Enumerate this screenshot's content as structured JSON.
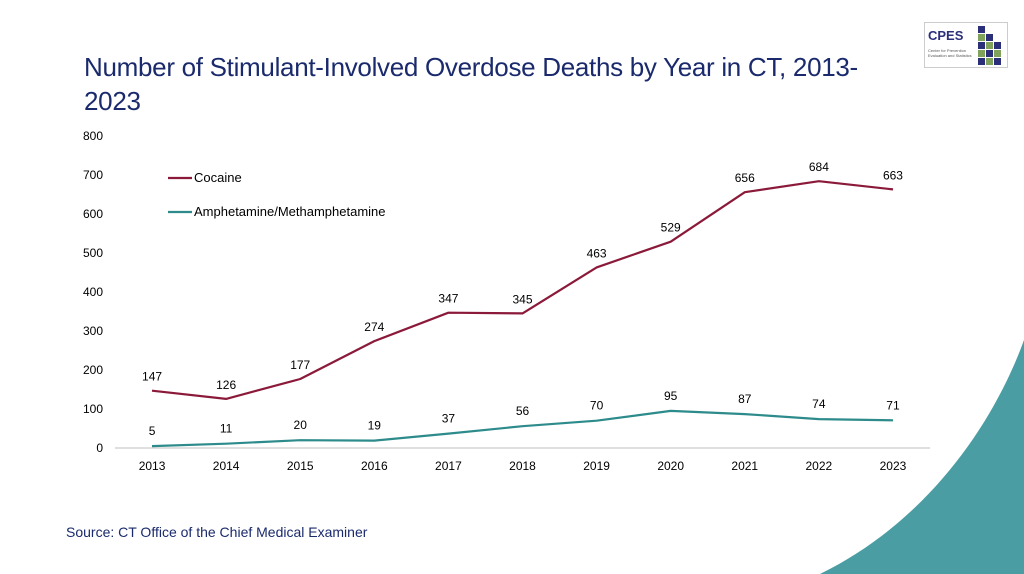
{
  "title": "Number of Stimulant-Involved Overdose Deaths by Year in CT, 2013-2023",
  "source": "Source: CT Office of the Chief Medical Examiner",
  "logo": {
    "text": "CPES",
    "subtext": "Center for Prevention Evaluation and Statistics"
  },
  "colors": {
    "cocaine": "#8b1a3a",
    "amphetamine": "#2e8b8b",
    "title": "#1a2a6c",
    "teal_decor": "#4a9ea3"
  },
  "chart_data": {
    "type": "line",
    "title": "Number of Stimulant-Involved Overdose Deaths by Year in CT, 2013-2023",
    "x": [
      "2013",
      "2014",
      "2015",
      "2016",
      "2017",
      "2018",
      "2019",
      "2020",
      "2021",
      "2022",
      "2023"
    ],
    "series": [
      {
        "name": "Cocaine",
        "color": "#8b1a3a",
        "values": [
          147,
          126,
          177,
          274,
          347,
          345,
          463,
          529,
          656,
          684,
          663
        ]
      },
      {
        "name": "Amphetamine/Methamphetamine",
        "color": "#2e8b8b",
        "values": [
          5,
          11,
          20,
          19,
          37,
          56,
          70,
          95,
          87,
          74,
          71
        ]
      }
    ],
    "ylim": [
      0,
      800
    ],
    "yticks": [
      0,
      100,
      200,
      300,
      400,
      500,
      600,
      700,
      800
    ],
    "xlabel": "",
    "ylabel": "",
    "grid": false,
    "legend": "top-left"
  }
}
